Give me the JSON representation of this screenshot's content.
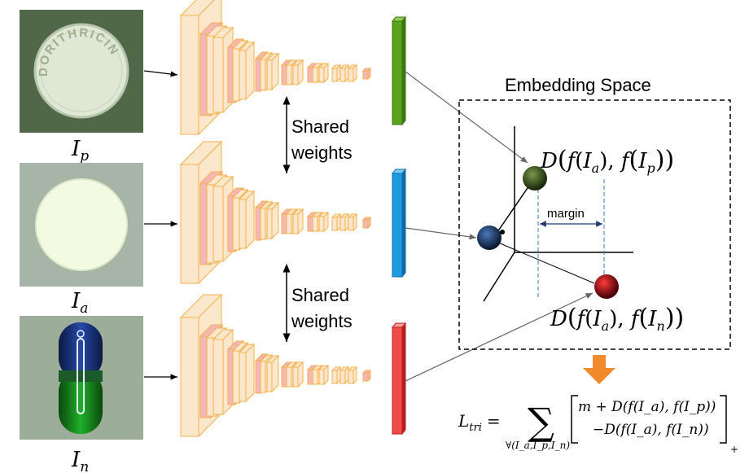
{
  "inputs": [
    {
      "label": "I",
      "sub": "p",
      "role": "positive",
      "imprint": "DORITHRICIN"
    },
    {
      "label": "I",
      "sub": "a",
      "role": "anchor"
    },
    {
      "label": "I",
      "sub": "n",
      "role": "negative"
    }
  ],
  "shared_weights": {
    "line1": "Shared",
    "line2": "weights"
  },
  "embedding_space": {
    "title": "Embedding Space",
    "margin_label": "margin",
    "dist_pos": {
      "D": "D",
      "f": "f",
      "a": "I",
      "a_sub": "a",
      "b": "I",
      "b_sub": "p"
    },
    "dist_neg": {
      "D": "D",
      "f": "f",
      "a": "I",
      "a_sub": "a",
      "b": "I",
      "b_sub": "n"
    }
  },
  "loss": {
    "lhs": "L",
    "lhs_sub": "tri",
    "eq": "=",
    "sum": "∑",
    "sum_sub": "∀(I_a,I_p,I_n)",
    "line1": "m + D(f(I_a), f(I_p))",
    "line2": "−D(f(I_a), f(I_n))",
    "plus": "+"
  },
  "colors": {
    "embed_pos": "#5aa31e",
    "embed_anchor": "#1f9be0",
    "embed_neg": "#f04b4b",
    "ball_pos": "#3d5a1a",
    "ball_anchor": "#1d3d6e",
    "ball_neg": "#b00010",
    "arrow_down": "#f08a2c",
    "cnn_fill": "#fbe7cc",
    "cnn_stroke": "#f3b24e",
    "cnn_pink": "#f5b6b6"
  }
}
